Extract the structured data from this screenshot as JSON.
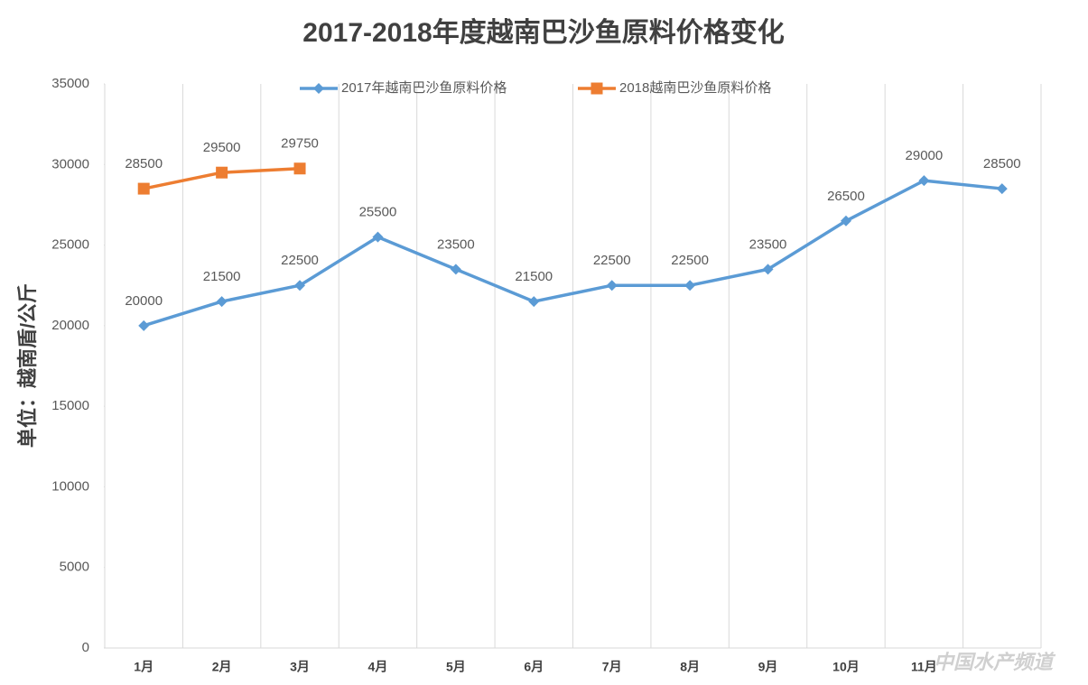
{
  "chart_data": {
    "type": "line",
    "title": "2017-2018年度越南巴沙鱼原料价格变化",
    "y_label": "单位：越南盾/公斤",
    "watermark": "中国水产频道",
    "categories": [
      "1月",
      "2月",
      "3月",
      "4月",
      "5月",
      "6月",
      "7月",
      "8月",
      "9月",
      "10月",
      "11月",
      null
    ],
    "series": [
      {
        "name": "2017年越南巴沙鱼原料价格",
        "color": "#5b9bd5",
        "marker": "diamond",
        "values": [
          20000,
          21500,
          22500,
          25500,
          23500,
          21500,
          22500,
          22500,
          23500,
          26500,
          29000,
          28500
        ]
      },
      {
        "name": "2018越南巴沙鱼原料价格",
        "color": "#ed7d31",
        "marker": "square",
        "values": [
          28500,
          29500,
          29750,
          null,
          null,
          null,
          null,
          null,
          null,
          null,
          null,
          null
        ]
      }
    ],
    "ylim": [
      0,
      35000
    ],
    "yticks": [
      0,
      5000,
      10000,
      15000,
      20000,
      25000,
      30000,
      35000
    ],
    "legend": "top"
  }
}
